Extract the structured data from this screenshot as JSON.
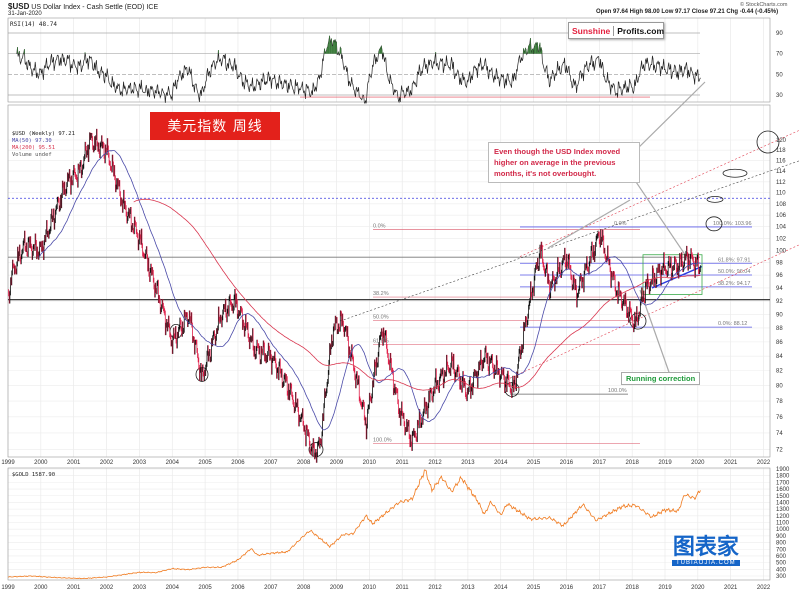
{
  "header": {
    "symbol": "$USD",
    "name": "US Dollar Index - Cash Settle (EOD)  ICE",
    "date": "31-Jan-2020",
    "source": "© StockCharts.com",
    "ohlc": "Open 97.64  High 98.00  Low 97.17  Close 97.21  Chg -0.44 (-0.45%)"
  },
  "logo": {
    "part1": "Sunshine",
    "part2": "Profits.com"
  },
  "title_cn": "美元指数  周线",
  "annotation": "Even though the USD Index moved higher on average in the previous months, it's not overbought.",
  "running_correction": "Running correction",
  "watermark": {
    "cn": "图表家",
    "en": "TUBIAOJIA.COM"
  },
  "colors": {
    "up": "#111111",
    "down": "#e0204a",
    "ma50": "#4a4aa8",
    "ma200": "#d9364f",
    "gold": "#f07a1e",
    "rsi_fill": "#3b7a3b"
  },
  "chart_data": [
    {
      "type": "line",
      "title": "RSI(14) 48.74",
      "panel": "rsi",
      "yticks": [
        90,
        70,
        50,
        30
      ],
      "ylim": [
        15,
        100
      ],
      "overbought": 70,
      "oversold": 30
    },
    {
      "type": "candlestick",
      "title": "$USD (Weekly) 97.21",
      "legend": [
        "$USD (Weekly) 97.21",
        "MA(50) 97.30",
        "MA(200) 95.51",
        "Volume undef"
      ],
      "legend_placement": "top-left",
      "xlim": [
        1999,
        2022.9
      ],
      "ylim": [
        70.5,
        124
      ],
      "yscale": "log",
      "yticks": [
        72,
        74,
        76,
        78,
        80,
        82,
        84,
        86,
        88,
        90,
        92,
        94,
        96,
        98,
        100,
        102,
        104,
        106,
        108,
        110,
        112,
        114,
        116,
        118,
        120
      ],
      "xticks": [
        "1999",
        "2000",
        "2001",
        "2002",
        "2003",
        "2004",
        "2005",
        "2006",
        "2007",
        "2008",
        "2009",
        "2010",
        "2011",
        "2012",
        "2013",
        "2014",
        "2015",
        "2016",
        "2017",
        "2018",
        "2019",
        "2020",
        "2021",
        "2022"
      ],
      "keypoints": [
        [
          1999.0,
          92
        ],
        [
          1999.1,
          96
        ],
        [
          1999.5,
          101
        ],
        [
          2000.0,
          100
        ],
        [
          2000.8,
          112
        ],
        [
          2001.2,
          114
        ],
        [
          2001.5,
          120
        ],
        [
          2002.0,
          118
        ],
        [
          2002.5,
          108
        ],
        [
          2003.0,
          102
        ],
        [
          2003.5,
          94
        ],
        [
          2004.0,
          86
        ],
        [
          2004.5,
          90
        ],
        [
          2004.9,
          81
        ],
        [
          2005.5,
          90
        ],
        [
          2005.9,
          92
        ],
        [
          2006.5,
          85
        ],
        [
          2007.0,
          84
        ],
        [
          2007.5,
          80
        ],
        [
          2008.0,
          75
        ],
        [
          2008.3,
          71.5
        ],
        [
          2008.5,
          72.5
        ],
        [
          2008.9,
          88
        ],
        [
          2009.2,
          89
        ],
        [
          2009.9,
          75
        ],
        [
          2010.4,
          88
        ],
        [
          2010.9,
          77
        ],
        [
          2011.3,
          73
        ],
        [
          2012.0,
          80
        ],
        [
          2012.5,
          83
        ],
        [
          2013.0,
          79
        ],
        [
          2013.5,
          84
        ],
        [
          2014.4,
          79.5
        ],
        [
          2015.2,
          100
        ],
        [
          2015.5,
          94
        ],
        [
          2016.0,
          99
        ],
        [
          2016.3,
          93
        ],
        [
          2016.9,
          101
        ],
        [
          2017.0,
          103
        ],
        [
          2017.5,
          94
        ],
        [
          2018.1,
          88.5
        ],
        [
          2018.4,
          94
        ],
        [
          2018.9,
          97
        ],
        [
          2019.4,
          97.5
        ],
        [
          2019.7,
          99
        ],
        [
          2020.08,
          97.21
        ]
      ],
      "fib_left": {
        "labels": [
          "0.0%",
          "38.2%",
          "50.0%",
          "61.8%",
          "100.0%"
        ],
        "levels": [
          103.5,
          92.6,
          89.1,
          85.6,
          72.7
        ]
      },
      "fib_right": {
        "labels": [
          "0.0%",
          "38.2%: 94.17",
          "50.0%: 96.04",
          "61.8%: 97.91",
          "100.0%: 103.96",
          "0.0%: 88.12",
          "100.0%"
        ],
        "levels": [
          103.96,
          94.17,
          96.04,
          97.91,
          103.96,
          88.12,
          78.9
        ]
      },
      "support": 92.2,
      "resistance": 98.9,
      "blue_level": 109
    },
    {
      "type": "line",
      "title": "$GOLD 1587.90",
      "panel": "gold",
      "yticks": [
        1900,
        1800,
        1700,
        1600,
        1500,
        1400,
        1300,
        1200,
        1100,
        1000,
        900,
        800,
        700,
        600,
        500,
        400,
        300
      ],
      "ylim": [
        300,
        1900
      ],
      "keypoints": [
        [
          1999.0,
          285
        ],
        [
          1999.7,
          300
        ],
        [
          2000.5,
          275
        ],
        [
          2001.3,
          262
        ],
        [
          2002.0,
          285
        ],
        [
          2002.5,
          320
        ],
        [
          2003.0,
          355
        ],
        [
          2003.5,
          350
        ],
        [
          2004.0,
          410
        ],
        [
          2004.5,
          395
        ],
        [
          2005.0,
          430
        ],
        [
          2005.5,
          430
        ],
        [
          2006.0,
          540
        ],
        [
          2006.4,
          710
        ],
        [
          2006.6,
          610
        ],
        [
          2007.0,
          640
        ],
        [
          2007.5,
          660
        ],
        [
          2008.0,
          900
        ],
        [
          2008.2,
          980
        ],
        [
          2008.8,
          740
        ],
        [
          2009.2,
          920
        ],
        [
          2009.5,
          930
        ],
        [
          2009.9,
          1200
        ],
        [
          2010.1,
          1080
        ],
        [
          2010.5,
          1240
        ],
        [
          2010.9,
          1400
        ],
        [
          2011.3,
          1450
        ],
        [
          2011.7,
          1890
        ],
        [
          2011.9,
          1580
        ],
        [
          2012.2,
          1780
        ],
        [
          2012.5,
          1560
        ],
        [
          2012.8,
          1770
        ],
        [
          2013.3,
          1420
        ],
        [
          2013.5,
          1220
        ],
        [
          2013.7,
          1410
        ],
        [
          2014.0,
          1210
        ],
        [
          2014.2,
          1380
        ],
        [
          2014.9,
          1150
        ],
        [
          2015.5,
          1170
        ],
        [
          2015.9,
          1050
        ],
        [
          2016.5,
          1370
        ],
        [
          2016.9,
          1130
        ],
        [
          2017.7,
          1340
        ],
        [
          2018.1,
          1360
        ],
        [
          2018.6,
          1180
        ],
        [
          2019.0,
          1290
        ],
        [
          2019.4,
          1270
        ],
        [
          2019.6,
          1520
        ],
        [
          2019.9,
          1460
        ],
        [
          2020.08,
          1588
        ]
      ]
    }
  ]
}
